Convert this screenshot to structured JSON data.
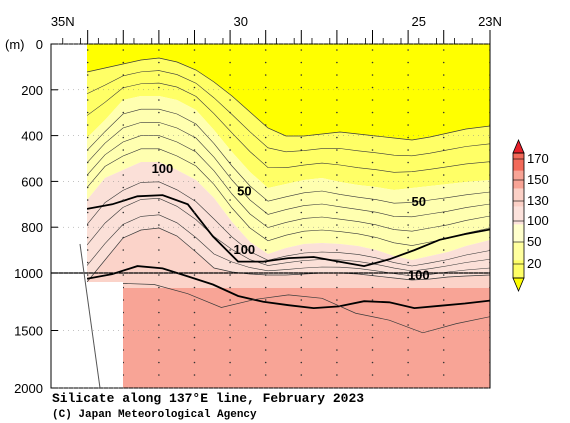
{
  "chart_data": {
    "type": "contour",
    "title": "Silicate along 137°E line, February 2023",
    "credit": "(C) Japan Meteorological Agency",
    "yunit": "(m)",
    "xlim": [
      35.33,
      23
    ],
    "lat_ticks": [
      {
        "value": 35,
        "label": "35N"
      },
      {
        "value": 30,
        "label": "30"
      },
      {
        "value": 25,
        "label": "25"
      },
      {
        "value": 23,
        "label": "23N"
      }
    ],
    "depth_ticks_upper": [
      0,
      200,
      400,
      600,
      800,
      1000
    ],
    "depth_ticks_lower": [
      1500,
      2000
    ],
    "stations": [
      34.3,
      33.3,
      32.3,
      31.3,
      30.3,
      29.3,
      28.3,
      27.3,
      26.3,
      25.3,
      24.3,
      23.0
    ],
    "colorbar": {
      "levels": [
        "20",
        "50",
        "100",
        "130",
        "150",
        "170"
      ],
      "colors": [
        "#ffff00",
        "#ffff66",
        "#ffff9e",
        "#ffffcc",
        "#fce2dc",
        "#fbd0c6",
        "#f8a496",
        "#f26a5a",
        "#e8202a"
      ]
    },
    "contour_labels": [
      {
        "text": "100",
        "lat": 32.2,
        "depth": 545
      },
      {
        "text": "50",
        "lat": 29.9,
        "depth": 645
      },
      {
        "text": "50",
        "lat": 25.0,
        "depth": 690
      },
      {
        "text": "100",
        "lat": 29.9,
        "depth": 900
      },
      {
        "text": "100",
        "lat": 25.0,
        "depth": 1020
      }
    ],
    "bold_contours": [
      {
        "level": "50",
        "depth": [
          720,
          700,
          665,
          660,
          700,
          840,
          950,
          950,
          935,
          930,
          950,
          970,
          940,
          900,
          855,
          830,
          810
        ]
      },
      {
        "level": "100",
        "depth": [
          1050,
          1010,
          970,
          980,
          1030,
          1100,
          1200,
          1250,
          1280,
          1305,
          1290,
          1245,
          1255,
          1305,
          1285,
          1265,
          1240
        ]
      }
    ]
  }
}
